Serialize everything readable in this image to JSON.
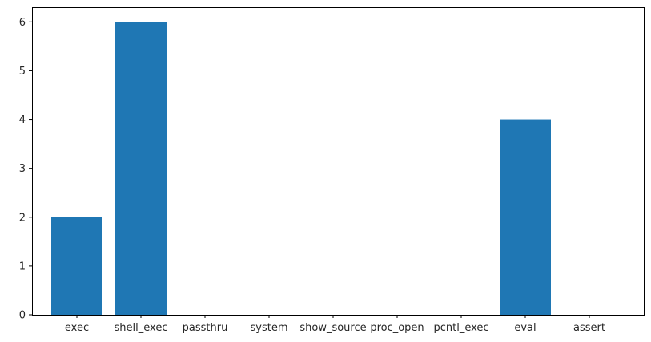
{
  "chart_data": {
    "type": "bar",
    "categories": [
      "exec",
      "shell_exec",
      "passthru",
      "system",
      "show_source",
      "proc_open",
      "pcntl_exec",
      "eval",
      "assert"
    ],
    "values": [
      2,
      6,
      0,
      0,
      0,
      0,
      0,
      4,
      0
    ],
    "title": "",
    "xlabel": "",
    "ylabel": "",
    "ylim": [
      0,
      6.3
    ],
    "yticks": [
      0,
      1,
      2,
      3,
      4,
      5,
      6
    ],
    "grid": false,
    "bar_color": "#1f77b4"
  }
}
